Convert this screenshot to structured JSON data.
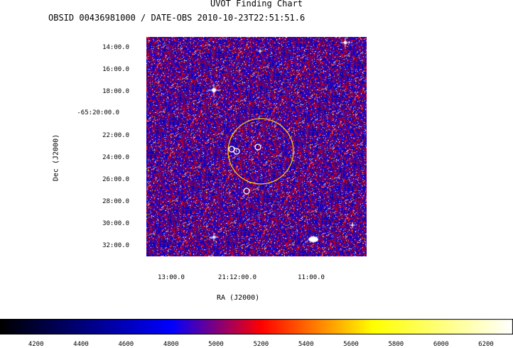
{
  "chart_data": {
    "type": "heatmap",
    "title": "UVOT Finding Chart",
    "subtitle": "OBSID 00436981000 / DATE-OBS 2010-10-23T22:51:51.6",
    "xlabel": "RA (J2000)",
    "ylabel": "Dec (J2000)",
    "y_ticks": [
      "14:00.0",
      "16:00.0",
      "18:00.0",
      "-65:20:00.0",
      "22:00.0",
      "24:00.0",
      "26:00.0",
      "28:00.0",
      "30:00.0",
      "32:00.0"
    ],
    "x_ticks": [
      "13:00.0",
      "21:12:00.0",
      "11:00.0"
    ],
    "colorbar": {
      "ticks": [
        4200,
        4400,
        4600,
        4800,
        5000,
        5200,
        5400,
        5600,
        5800,
        6000,
        6200
      ],
      "range": [
        4040,
        6320
      ],
      "stops": [
        {
          "value": 4040,
          "color": "#000000"
        },
        {
          "value": 4800,
          "color": "#0000ff"
        },
        {
          "value": 5200,
          "color": "#ff0000"
        },
        {
          "value": 5700,
          "color": "#ffff00"
        },
        {
          "value": 6320,
          "color": "#ffffff"
        }
      ]
    },
    "colors": {
      "error_circle": "#ffc800",
      "source_markers": "#ffffff",
      "background_blue": "#0000d0",
      "background_red": "#e00000"
    }
  }
}
